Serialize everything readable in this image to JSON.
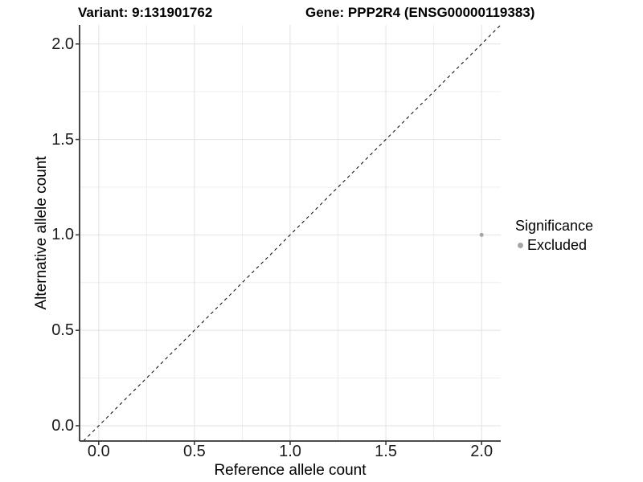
{
  "header": {
    "variant_title": "Variant: 9:131901762",
    "gene_title": "Gene: PPP2R4 (ENSG00000119383)"
  },
  "legend": {
    "title": "Significance",
    "items": [
      {
        "label": "Excluded",
        "color": "#a6a6a6"
      }
    ]
  },
  "chart_data": {
    "type": "scatter",
    "title": "Variant: 9:131901762 — Gene: PPP2R4 (ENSG00000119383)",
    "xlabel": "Reference allele count",
    "ylabel": "Alternative allele count",
    "xlim": [
      -0.1,
      2.1
    ],
    "ylim": [
      -0.08,
      2.1
    ],
    "x_ticks": {
      "values": [
        0,
        0.5,
        1,
        1.5,
        2
      ],
      "labels": [
        "0.0",
        "0.5",
        "1.0",
        "1.5",
        "2.0"
      ]
    },
    "y_ticks": {
      "values": [
        0,
        0.5,
        1,
        1.5,
        2
      ],
      "labels": [
        "0.0",
        "0.5",
        "1.0",
        "1.5",
        "2.0"
      ]
    },
    "x_minor_ticks": [
      0.25,
      0.75,
      1.25,
      1.75
    ],
    "y_minor_ticks": [
      0.25,
      0.75,
      1.25,
      1.75
    ],
    "grid": "major+minor",
    "legend_position": "right",
    "series": [
      {
        "name": "Excluded",
        "color": "#a6a6a6",
        "marker": "circle",
        "points": [
          {
            "x": 2.0,
            "y": 1.0
          }
        ]
      }
    ],
    "reference_line": {
      "kind": "identity",
      "equation": "y = x",
      "style": "dashed",
      "color": "#000000"
    }
  },
  "colors": {
    "background": "#ffffff",
    "grid_major": "#e2e2e2",
    "grid_minor": "#ededed",
    "axis_line": "#333333",
    "tick_label": "#1a1a1a",
    "point": "#a6a6a6"
  }
}
